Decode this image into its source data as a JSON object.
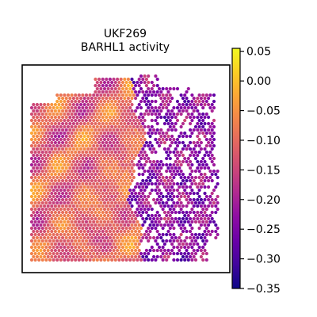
{
  "chart_data": {
    "type": "heatmap",
    "title_line1": "UKF269",
    "title_line2": "BARHL1 activity",
    "colormap": "plasma",
    "colorbar": {
      "min": -0.35,
      "max": 0.055,
      "ticks": [
        0.05,
        0.0,
        -0.05,
        -0.1,
        -0.15,
        -0.2,
        -0.25,
        -0.3,
        -0.35
      ],
      "tick_labels": [
        "0.05",
        "0.00",
        "−0.05",
        "−0.10",
        "−0.15",
        "−0.20",
        "−0.25",
        "−0.30",
        "−0.35"
      ]
    },
    "x_axis": {
      "ticks": []
    },
    "y_axis": {
      "ticks": []
    },
    "spot_map": {
      "description_free_note": "",
      "left_region_value_range": [
        -0.2,
        0.0
      ],
      "right_region_value_range": [
        -0.32,
        -0.12
      ]
    }
  }
}
